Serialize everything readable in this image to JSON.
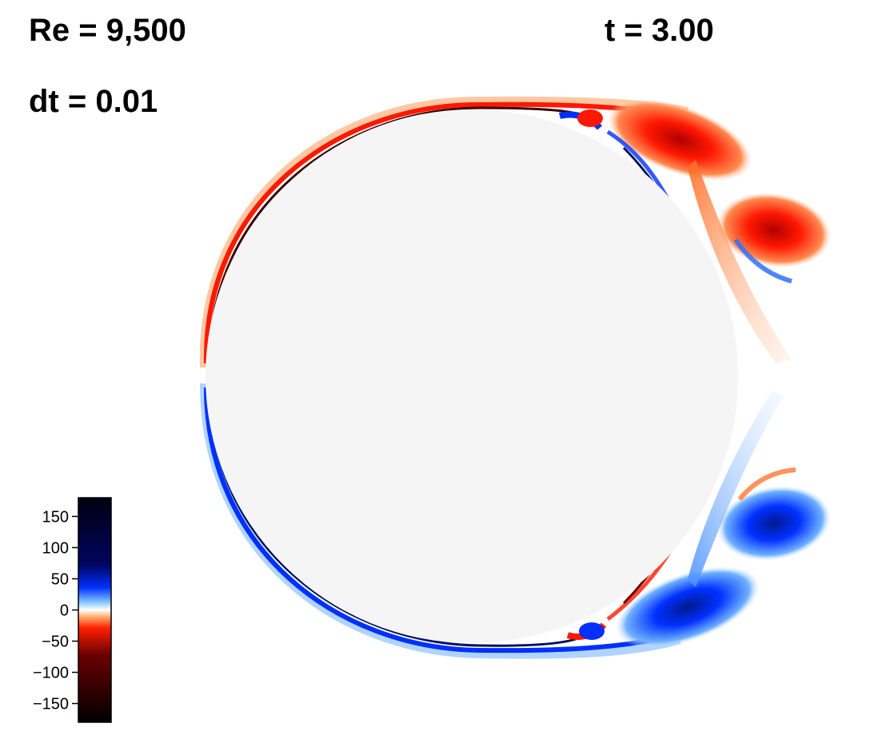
{
  "labels": {
    "reynolds": "Re = 9,500",
    "time": "t = 3.00",
    "timestep": "dt = 0.01"
  },
  "colorbar": {
    "ticks": [
      "150",
      "100",
      "50",
      "0",
      "−50",
      "−100",
      "−150"
    ],
    "tick_values": [
      150,
      100,
      50,
      0,
      -50,
      -100,
      -150
    ],
    "range": [
      -180,
      180
    ],
    "colors": {
      "max": "#000010",
      "high": "#00055f",
      "mid_positive": "#0030ff",
      "near_zero_positive": "#8fd0ff",
      "zero": "#ffffff",
      "near_zero_negative": "#ffb070",
      "mid_negative": "#ff2000",
      "low": "#6a0000",
      "min": "#000000"
    }
  },
  "cylinder": {
    "fill": "#f5f5f5"
  },
  "vorticity_colors": {
    "positive_light": "#6fb0ff",
    "positive": "#0030ff",
    "positive_dark": "#001060",
    "negative_light": "#ff9a55",
    "negative": "#ff1800",
    "negative_dark": "#3a0000"
  }
}
